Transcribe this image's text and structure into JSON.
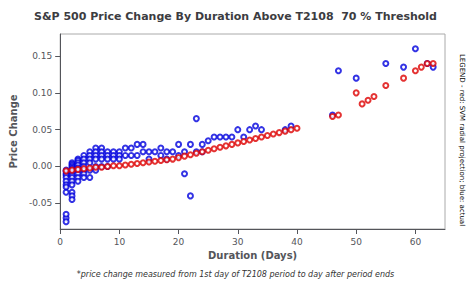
{
  "chart_data": {
    "type": "scatter",
    "title": "S&P 500 Price Change By Duration Above T2108  70 % Threshold",
    "xlabel": "Duration (Days)",
    "ylabel": "Price Change",
    "annotations": [
      "*price change measured from 1st day of T2108 period to day after period ends",
      "LEGEND - red: SVM radial projection; blue: actual"
    ],
    "xlim": [
      0,
      65
    ],
    "ylim": [
      -0.085,
      0.18
    ],
    "xticks": [
      0,
      10,
      20,
      30,
      40,
      50,
      60
    ],
    "yticks": [
      -0.05,
      {
        "value": 0.0,
        "label": "0.00"
      },
      0.05,
      {
        "value": 0.1,
        "label": "0.10"
      },
      0.15
    ],
    "grid": false,
    "series": [
      {
        "color": "#0000dd",
        "x": [
          1,
          1,
          1,
          1,
          1,
          1,
          1,
          1,
          1,
          1,
          1,
          1,
          2,
          2,
          2,
          2,
          2,
          2,
          2,
          2,
          2,
          2,
          2,
          2,
          2,
          2,
          3,
          3,
          3,
          3,
          3,
          3,
          3,
          3,
          3,
          4,
          4,
          4,
          4,
          4,
          4,
          4,
          5,
          5,
          5,
          5,
          5,
          5,
          6,
          6,
          6,
          6,
          6,
          6,
          7,
          7,
          7,
          7,
          7,
          8,
          8,
          8,
          8,
          9,
          9,
          9,
          10,
          10,
          10,
          11,
          11,
          12,
          12,
          13,
          13,
          14,
          14,
          15,
          15,
          16,
          17,
          17,
          18,
          18,
          19,
          20,
          20,
          21,
          21,
          22,
          22,
          23,
          23,
          24,
          24,
          25,
          26,
          27,
          28,
          29,
          30,
          31,
          32,
          33,
          34,
          38,
          39,
          46,
          47,
          50,
          55,
          58,
          60,
          62,
          63
        ],
        "values": [
          -0.005,
          -0.007,
          -0.01,
          -0.012,
          -0.015,
          -0.02,
          -0.025,
          -0.028,
          -0.035,
          -0.07,
          -0.075,
          -0.065,
          0.005,
          0.003,
          0.001,
          -0.001,
          -0.003,
          -0.005,
          -0.008,
          -0.012,
          -0.015,
          -0.02,
          -0.025,
          -0.035,
          -0.04,
          -0.045,
          0.01,
          0.008,
          0.005,
          0.002,
          -0.002,
          -0.005,
          -0.01,
          -0.015,
          -0.02,
          0.015,
          0.01,
          0.005,
          0.0,
          -0.005,
          -0.01,
          -0.015,
          0.02,
          0.015,
          0.01,
          0.005,
          -0.005,
          -0.015,
          0.025,
          0.02,
          0.015,
          0.01,
          0.0,
          -0.005,
          0.025,
          0.02,
          0.015,
          0.01,
          0.0,
          0.02,
          0.015,
          0.01,
          0.0,
          0.02,
          0.015,
          0.01,
          0.02,
          0.015,
          0.01,
          0.025,
          0.015,
          0.025,
          0.015,
          0.03,
          0.015,
          0.03,
          0.02,
          0.02,
          0.01,
          0.02,
          0.025,
          0.015,
          0.02,
          0.01,
          0.02,
          0.03,
          0.015,
          -0.01,
          0.02,
          -0.04,
          0.03,
          0.065,
          0.02,
          0.03,
          0.02,
          0.035,
          0.04,
          0.04,
          0.04,
          0.04,
          0.05,
          0.04,
          0.05,
          0.055,
          0.05,
          0.05,
          0.055,
          0.07,
          0.13,
          0.12,
          0.14,
          0.135,
          0.16,
          0.14,
          0.135
        ]
      },
      {
        "color": "#dd0000",
        "x": [
          1,
          2,
          3,
          4,
          5,
          6,
          7,
          8,
          9,
          10,
          11,
          12,
          13,
          14,
          15,
          16,
          17,
          18,
          19,
          20,
          21,
          22,
          23,
          24,
          25,
          26,
          27,
          28,
          29,
          30,
          31,
          32,
          33,
          34,
          35,
          36,
          37,
          38,
          39,
          40,
          46,
          47,
          50,
          51,
          52,
          53,
          55,
          58,
          60,
          61,
          62,
          63
        ],
        "values": [
          -0.006,
          -0.005,
          -0.004,
          -0.003,
          -0.002,
          -0.001,
          -0.001,
          0.0,
          0.001,
          0.001,
          0.002,
          0.003,
          0.004,
          0.005,
          0.006,
          0.007,
          0.008,
          0.009,
          0.01,
          0.012,
          0.014,
          0.016,
          0.018,
          0.02,
          0.022,
          0.024,
          0.026,
          0.028,
          0.03,
          0.032,
          0.034,
          0.036,
          0.038,
          0.04,
          0.042,
          0.044,
          0.046,
          0.048,
          0.05,
          0.052,
          0.068,
          0.07,
          0.1,
          0.085,
          0.09,
          0.095,
          0.11,
          0.12,
          0.13,
          0.135,
          0.14,
          0.14
        ]
      }
    ]
  }
}
